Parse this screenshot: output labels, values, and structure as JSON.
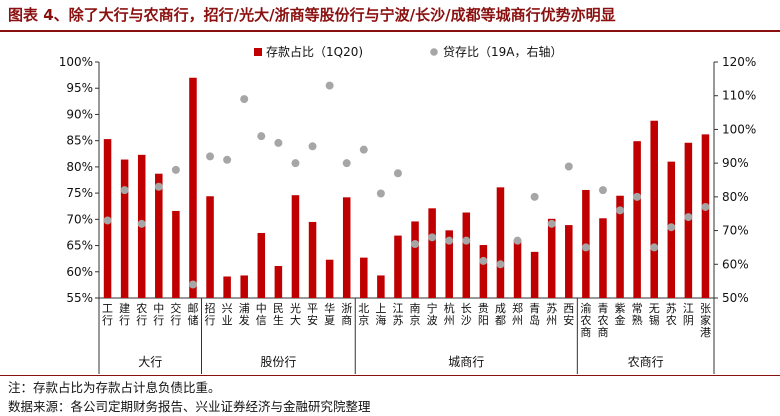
{
  "title": "图表 4、除了大行与农商行，招行/光大/浙商等股份行与宁波/长沙/成都等城商行优势亦明显",
  "note": "注：存款占比为存款占计息负债比重。",
  "source": "数据来源：各公司定期财务报告、兴业证券经济与金融研究院整理",
  "colors": {
    "bar": "#c00000",
    "dot": "#a6a6a6",
    "title": "#8a1010"
  },
  "chart_data": {
    "type": "bar",
    "title": "",
    "categories": [
      "工行",
      "建行",
      "农行",
      "中行",
      "交行",
      "邮储",
      "招行",
      "兴业",
      "浦发",
      "中信",
      "民生",
      "光大",
      "平安",
      "华夏",
      "浙商",
      "北京",
      "上海",
      "江苏",
      "南京",
      "宁波",
      "杭州",
      "长沙",
      "贵阳",
      "成都",
      "郑州",
      "青岛",
      "苏州",
      "西安",
      "渝农商",
      "青农商",
      "紫金",
      "常熟",
      "无锡",
      "苏农",
      "江阴",
      "张家港"
    ],
    "groups": [
      {
        "label": "大行",
        "count": 6
      },
      {
        "label": "股份行",
        "count": 9
      },
      {
        "label": "城商行",
        "count": 13
      },
      {
        "label": "农商行",
        "count": 8
      }
    ],
    "series": [
      {
        "name": "存款占比（1Q20)",
        "type": "bar",
        "axis": "left",
        "values": [
          85.3,
          81.4,
          82.3,
          78.7,
          71.6,
          97.0,
          74.4,
          59.1,
          59.3,
          67.4,
          61.1,
          74.6,
          69.5,
          62.3,
          74.2,
          62.7,
          59.3,
          66.9,
          69.6,
          72.1,
          67.9,
          71.3,
          65.1,
          76.1,
          65.9,
          63.8,
          70.1,
          68.9,
          75.6,
          70.2,
          74.5,
          84.9,
          88.8,
          81.0,
          84.6,
          86.2
        ]
      },
      {
        "name": "贷存比（19A，右轴）",
        "type": "scatter",
        "axis": "right",
        "values": [
          73,
          82,
          72,
          83,
          88,
          54,
          92,
          91,
          109,
          98,
          96,
          90,
          95,
          113,
          90,
          94,
          81,
          87,
          66,
          68,
          67,
          67,
          61,
          60,
          67,
          80,
          72,
          89,
          65,
          82,
          76,
          80,
          65,
          71,
          74,
          77
        ]
      }
    ],
    "legend": [
      "存款占比（1Q20)",
      "贷存比（19A，右轴）"
    ],
    "ylim": [
      55,
      100
    ],
    "yticks": [
      "55%",
      "60%",
      "65%",
      "70%",
      "75%",
      "80%",
      "85%",
      "90%",
      "95%",
      "100%"
    ],
    "y2lim": [
      50,
      120
    ],
    "y2ticks": [
      "50%",
      "60%",
      "70%",
      "80%",
      "90%",
      "100%",
      "110%",
      "120%"
    ]
  }
}
